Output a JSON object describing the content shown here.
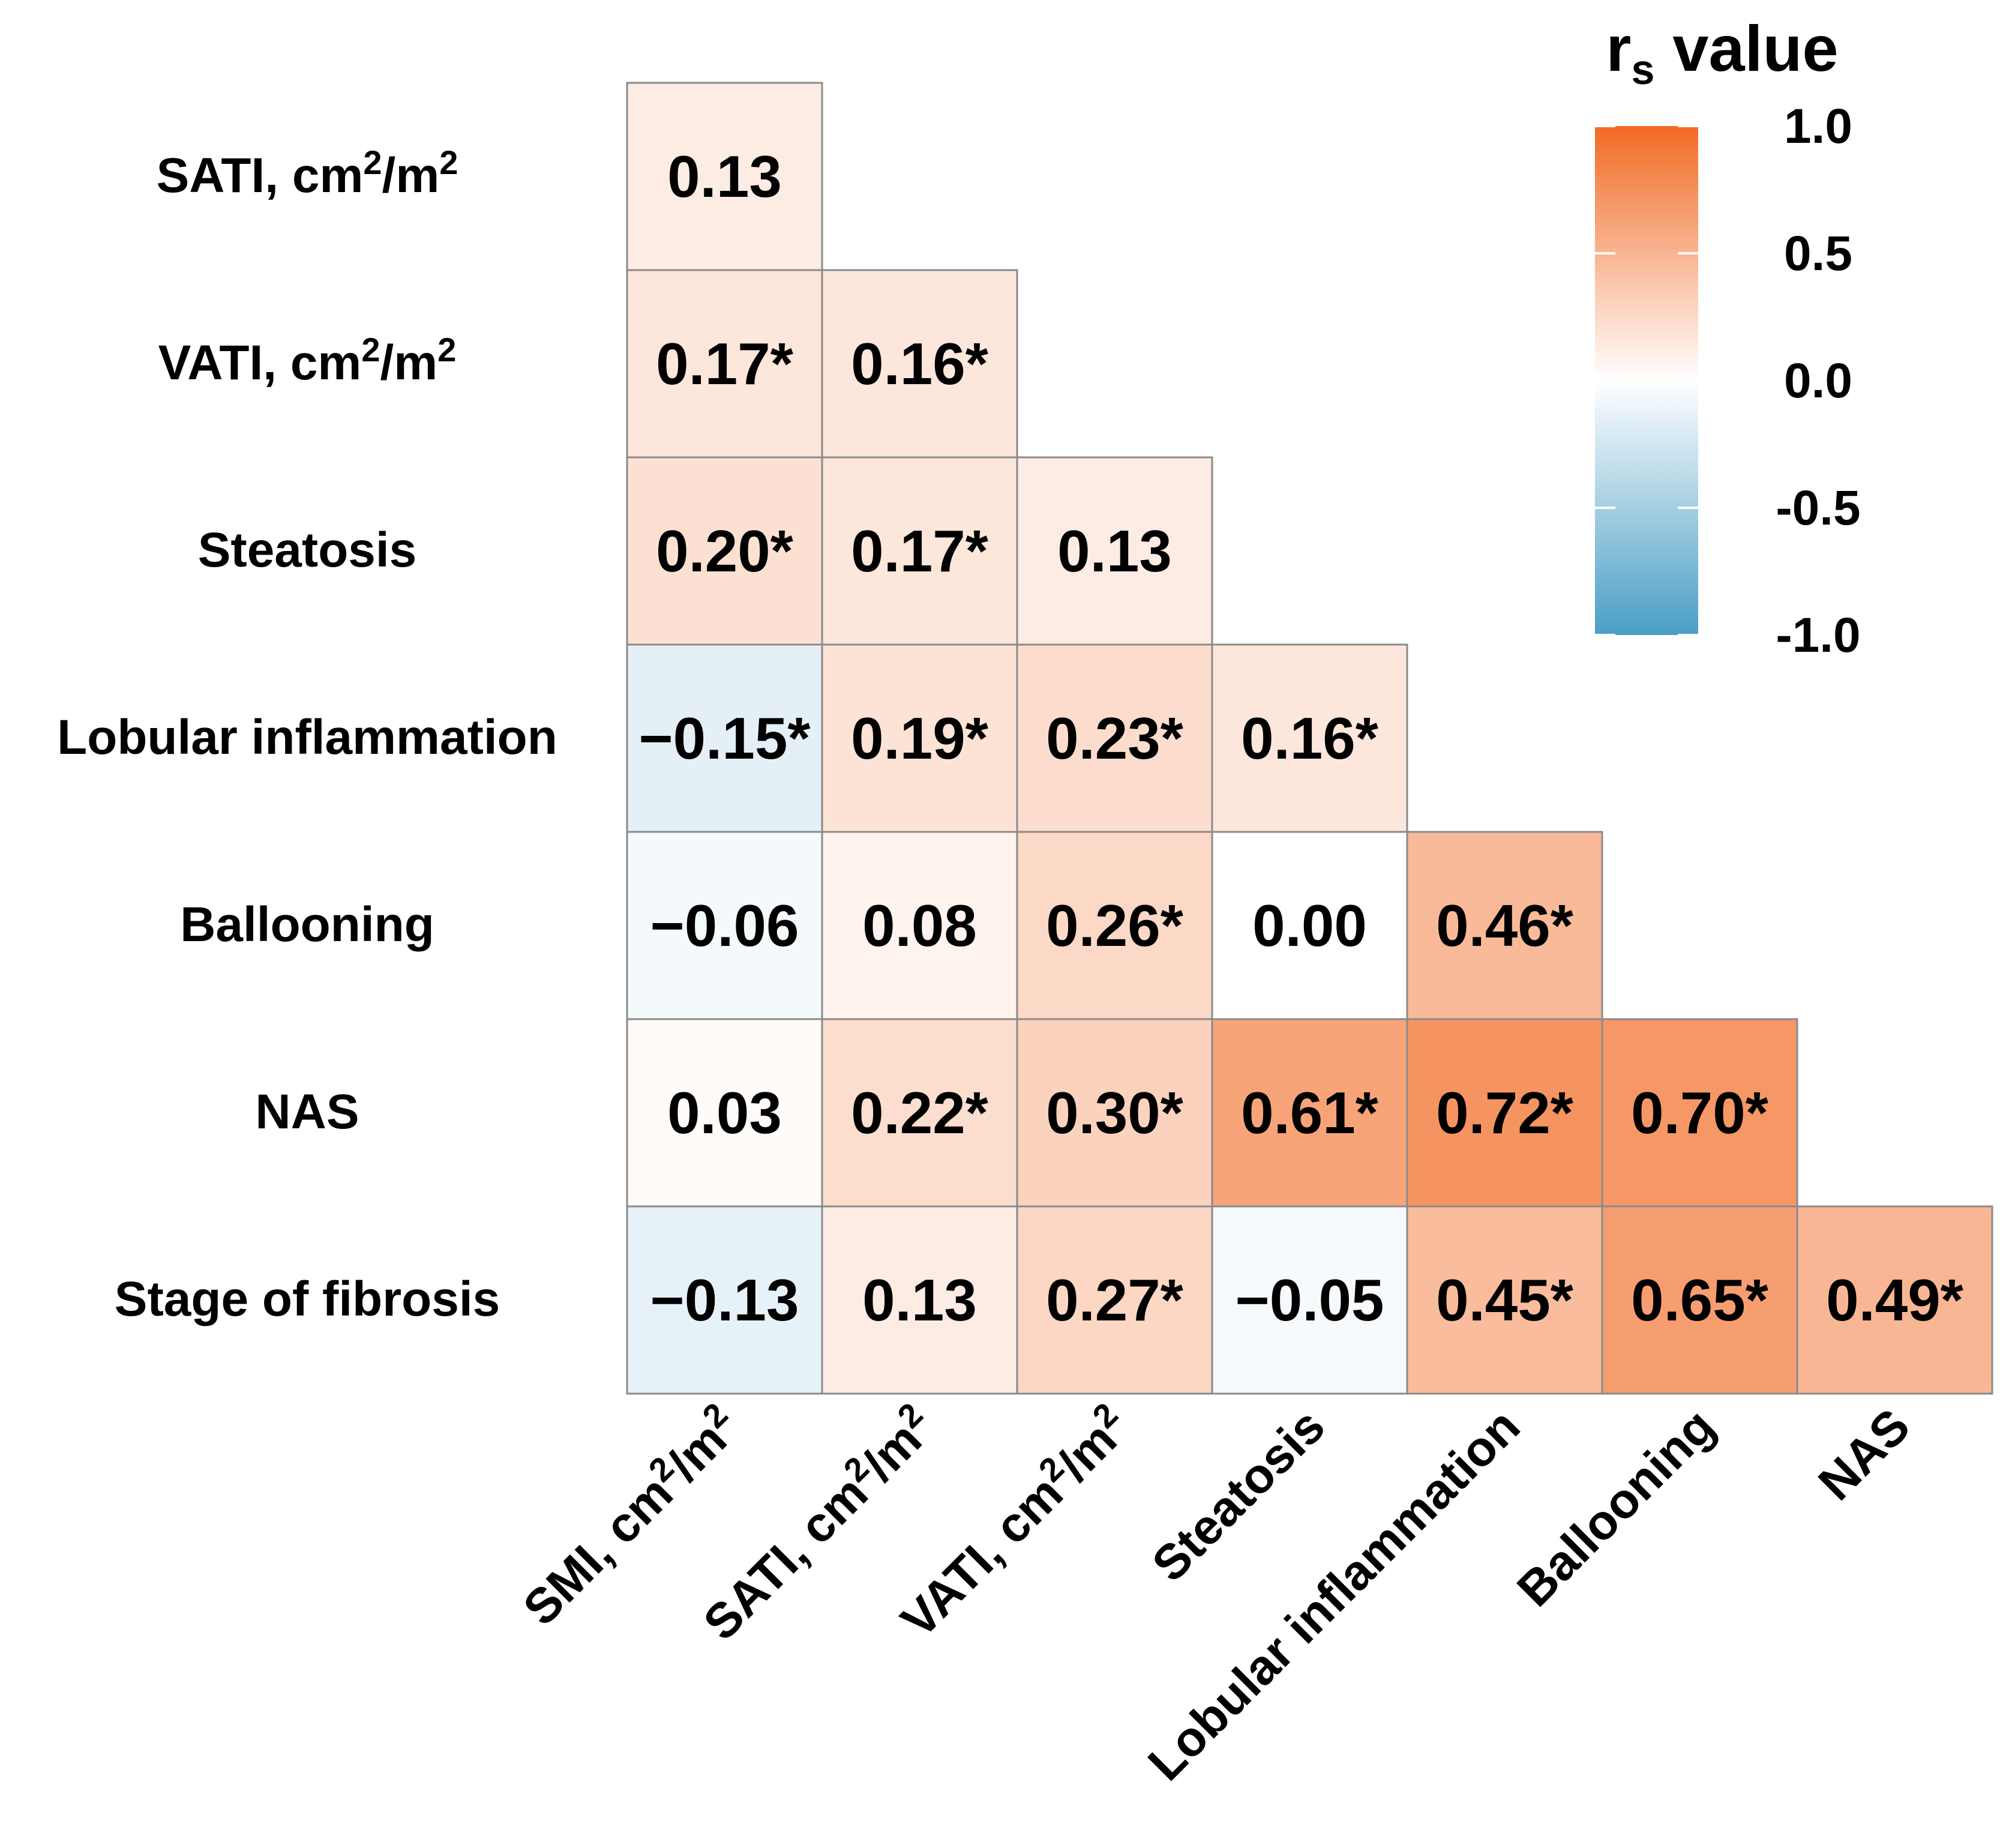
{
  "chart_data": {
    "type": "heatmap",
    "title": "",
    "legend": {
      "title_main": "r",
      "title_sub": "s",
      "title_rest": " value",
      "ticks": [
        1.0,
        0.5,
        0.0,
        -0.5,
        -1.0
      ],
      "tick_labels": [
        "1.0",
        "0.5",
        "0.0",
        "-0.5",
        "-1.0"
      ],
      "range": [
        -1.0,
        1.0
      ],
      "position": "top-right"
    },
    "colors": {
      "high": "#f26a24",
      "mid": "#ffffff",
      "low": "#4a9ec6",
      "border": "#8a8a8a"
    },
    "rows": [
      {
        "label": "SATI, cm",
        "sup1": "2",
        "mid": "/m",
        "sup2": "2"
      },
      {
        "label": "VATI, cm",
        "sup1": "2",
        "mid": "/m",
        "sup2": "2"
      },
      {
        "label": "Steatosis"
      },
      {
        "label": "Lobular inflammation"
      },
      {
        "label": "Ballooning"
      },
      {
        "label": "NAS"
      },
      {
        "label": "Stage of fibrosis"
      }
    ],
    "columns": [
      {
        "label": "SMI, cm",
        "sup1": "2",
        "mid": "/m",
        "sup2": "2"
      },
      {
        "label": "SATI, cm",
        "sup1": "2",
        "mid": "/m",
        "sup2": "2"
      },
      {
        "label": "VATI, cm",
        "sup1": "2",
        "mid": "/m",
        "sup2": "2"
      },
      {
        "label": "Steatosis"
      },
      {
        "label": "Lobular inflammation"
      },
      {
        "label": "Ballooning"
      },
      {
        "label": "NAS"
      }
    ],
    "values": [
      [
        0.13
      ],
      [
        0.17,
        0.16
      ],
      [
        0.2,
        0.17,
        0.13
      ],
      [
        -0.15,
        0.19,
        0.23,
        0.16
      ],
      [
        -0.06,
        0.08,
        0.26,
        0.0,
        0.46
      ],
      [
        0.03,
        0.22,
        0.3,
        0.61,
        0.72,
        0.7
      ],
      [
        -0.13,
        0.13,
        0.27,
        -0.05,
        0.45,
        0.65,
        0.49
      ]
    ],
    "cell_labels": [
      [
        "0.13"
      ],
      [
        "0.17*",
        "0.16*"
      ],
      [
        "0.20*",
        "0.17*",
        "0.13"
      ],
      [
        "−0.15*",
        "0.19*",
        "0.23*",
        "0.16*"
      ],
      [
        "−0.06",
        "0.08",
        "0.26*",
        "0.00",
        "0.46*"
      ],
      [
        "0.03",
        "0.22*",
        "0.30*",
        "0.61*",
        "0.72*",
        "0.70*"
      ],
      [
        "−0.13",
        "0.13",
        "0.27*",
        "−0.05",
        "0.45*",
        "0.65*",
        "0.49*"
      ]
    ]
  }
}
